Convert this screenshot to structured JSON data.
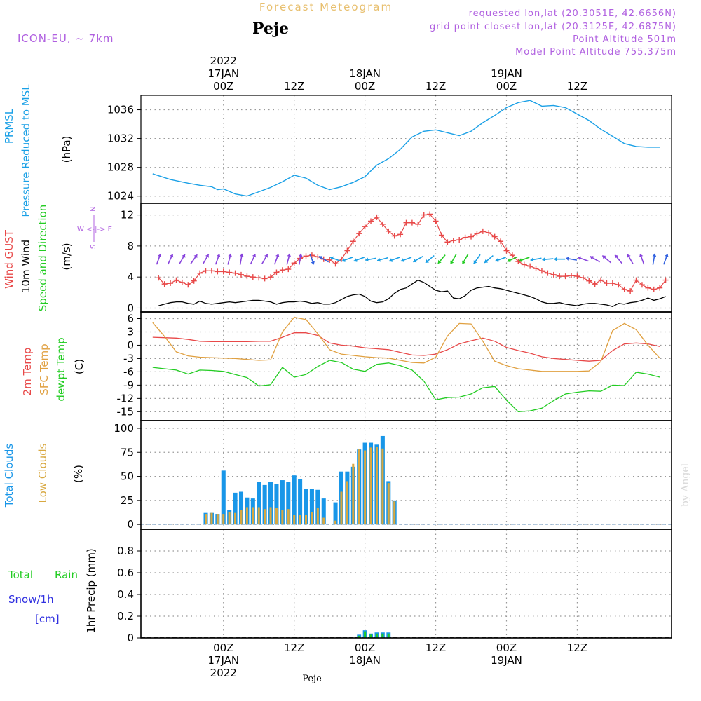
{
  "header": {
    "product": "Forecast Meteogram",
    "location": "Peje",
    "model": "ICON-EU, ~ 7km",
    "requested": "requested lon,lat (20.3051E, 42.6656N)",
    "gridpoint": "grid point closest lon,lat (20.3125E, 42.6875N)",
    "point_alt": "Point Altitude 501m",
    "model_alt": "Model Point Altitude 755.375m",
    "footer_location": "Peje",
    "watermark": "by Angel"
  },
  "colors": {
    "pressure": "#1aa0e6",
    "gust": "#e84848",
    "wind": "#000000",
    "direction": "#22cc22",
    "arrows_purple": "#8844dd",
    "t2m": "#e84848",
    "sfc": "#e0a040",
    "dew": "#22cc22",
    "total_clouds": "#1896e8",
    "low_clouds": "#d8a840",
    "rain": "#22cc22",
    "snow": "#3030e0",
    "header_purple": "#b060e0",
    "header_gold": "#e8c070",
    "grid": "#999999"
  },
  "chart_data": [
    {
      "id": "pressure",
      "type": "line",
      "title": "",
      "ylabels": [
        "PRMSL",
        "Pressure Reduced to MSL"
      ],
      "unit": "(hPa)",
      "ylim": [
        1023,
        1038
      ],
      "yticks": [
        1024,
        1028,
        1032,
        1036
      ],
      "x_hours": [
        -12,
        -9,
        -6,
        -4,
        -2,
        -1,
        0,
        2,
        4,
        6,
        8,
        10,
        12,
        14,
        16,
        18,
        20,
        22,
        24,
        26,
        28,
        30,
        32,
        34,
        36,
        38,
        40,
        42,
        44,
        46,
        48,
        50,
        52,
        54,
        56,
        58,
        60,
        62,
        64,
        66,
        68,
        70,
        72,
        74
      ],
      "series": [
        {
          "values": [
            1027.1,
            1026.3,
            1025.8,
            1025.5,
            1025.3,
            1024.9,
            1025.0,
            1024.3,
            1024.0,
            1024.6,
            1025.2,
            1026.0,
            1026.9,
            1026.5,
            1025.5,
            1024.9,
            1025.3,
            1025.9,
            1026.7,
            1028.3,
            1029.2,
            1030.5,
            1032.2,
            1033.0,
            1033.2,
            1032.8,
            1032.4,
            1033.0,
            1034.2,
            1035.2,
            1036.3,
            1037.0,
            1037.3,
            1036.5,
            1036.6,
            1036.3,
            1035.4,
            1034.5,
            1033.3,
            1032.3,
            1031.3,
            1030.9,
            1030.8,
            1030.8
          ]
        }
      ]
    },
    {
      "id": "wind",
      "type": "line",
      "title": "",
      "ylabels": [
        "Wind GUST",
        "10m Wind",
        "Speed and Direction"
      ],
      "unit": "(m/s)",
      "compass": [
        "N",
        "W <-|-> E",
        "S"
      ],
      "ylim": [
        -0.5,
        13.5
      ],
      "yticks": [
        0,
        4,
        8,
        12
      ],
      "x_hours": [
        -11,
        -10,
        -9,
        -8,
        -7,
        -6,
        -5,
        -4,
        -3,
        -2,
        -1,
        0,
        1,
        2,
        3,
        4,
        5,
        6,
        7,
        8,
        9,
        10,
        11,
        12,
        13,
        14,
        15,
        16,
        17,
        18,
        19,
        20,
        21,
        22,
        23,
        24,
        25,
        26,
        27,
        28,
        29,
        30,
        31,
        32,
        33,
        34,
        35,
        36,
        37,
        38,
        39,
        40,
        41,
        42,
        43,
        44,
        45,
        46,
        47,
        48,
        49,
        50,
        51,
        52,
        53,
        54,
        55,
        56,
        57,
        58,
        59,
        60,
        61,
        62,
        63,
        64,
        65,
        66,
        67,
        68,
        69,
        70,
        71,
        72,
        73,
        74,
        75
      ],
      "series": [
        {
          "name": "Wind GUST",
          "values": [
            3.9,
            3.1,
            3.2,
            3.6,
            3.3,
            3.0,
            3.5,
            4.5,
            4.8,
            4.8,
            4.7,
            4.7,
            4.6,
            4.5,
            4.3,
            4.1,
            4.0,
            3.9,
            3.8,
            4.0,
            4.6,
            4.9,
            5.0,
            5.8,
            6.4,
            6.7,
            6.8,
            6.6,
            6.3,
            6.2,
            5.7,
            6.3,
            7.4,
            8.6,
            9.6,
            10.5,
            11.2,
            11.7,
            10.8,
            9.9,
            9.3,
            9.5,
            11.0,
            11.0,
            10.8,
            12.0,
            12.1,
            11.2,
            9.4,
            8.5,
            8.7,
            8.8,
            9.1,
            9.2,
            9.6,
            9.9,
            9.7,
            9.2,
            8.6,
            7.4,
            6.8,
            6.0,
            5.6,
            5.4,
            5.1,
            4.8,
            4.5,
            4.3,
            4.1,
            4.1,
            4.2,
            4.1,
            3.9,
            3.5,
            3.1,
            3.6,
            3.2,
            3.2,
            3.0,
            2.4,
            2.2,
            3.6,
            3.0,
            2.6,
            2.4,
            2.6,
            3.6
          ]
        },
        {
          "name": "10m Wind",
          "values": [
            0.3,
            0.5,
            0.7,
            0.8,
            0.8,
            0.6,
            0.5,
            0.9,
            0.6,
            0.5,
            0.6,
            0.7,
            0.8,
            0.7,
            0.8,
            0.9,
            1.0,
            1.0,
            0.9,
            0.8,
            0.5,
            0.7,
            0.8,
            0.8,
            0.9,
            0.8,
            0.6,
            0.7,
            0.5,
            0.5,
            0.7,
            1.1,
            1.5,
            1.7,
            1.8,
            1.5,
            0.9,
            0.7,
            0.8,
            1.2,
            1.9,
            2.4,
            2.6,
            3.1,
            3.6,
            3.3,
            2.8,
            2.3,
            2.1,
            2.2,
            1.3,
            1.2,
            1.6,
            2.3,
            2.6,
            2.7,
            2.8,
            2.6,
            2.5,
            2.3,
            2.1,
            1.9,
            1.7,
            1.5,
            1.2,
            0.8,
            0.6,
            0.6,
            0.7,
            0.5,
            0.4,
            0.3,
            0.5,
            0.6,
            0.6,
            0.5,
            0.4,
            0.2,
            0.6,
            0.5,
            0.7,
            0.8,
            1.0,
            1.3,
            1.0,
            1.2,
            1.5
          ]
        }
      ],
      "direction": {
        "arrow_y": 6.3,
        "x_hours": [
          -11,
          -9,
          -7,
          -5,
          -3,
          -1,
          1,
          3,
          5,
          7,
          9,
          11,
          13,
          15,
          17,
          19,
          21,
          23,
          25,
          27,
          29,
          31,
          33,
          35,
          37,
          39,
          41,
          43,
          45,
          47,
          49,
          51,
          53,
          55,
          57,
          59,
          61,
          63,
          65,
          67,
          69,
          71,
          73,
          75
        ],
        "degrees": [
          20,
          25,
          30,
          35,
          30,
          20,
          15,
          10,
          25,
          30,
          20,
          15,
          10,
          160,
          300,
          290,
          250,
          250,
          260,
          255,
          250,
          250,
          240,
          230,
          220,
          210,
          210,
          215,
          230,
          250,
          245,
          250,
          260,
          265,
          270,
          280,
          290,
          300,
          310,
          320,
          330,
          340,
          10,
          20
        ],
        "colors": [
          "#8844dd",
          "#8844dd",
          "#8844dd",
          "#8844dd",
          "#8844dd",
          "#8844dd",
          "#8844dd",
          "#8844dd",
          "#8844dd",
          "#8844dd",
          "#8844dd",
          "#8844dd",
          "#8844dd",
          "#3060e0",
          "#3060e0",
          "#1aa0e6",
          "#1aa0e6",
          "#1aa0e6",
          "#1aa0e6",
          "#1aa0e6",
          "#1aa0e6",
          "#1aa0e6",
          "#1aa0e6",
          "#1aa0e6",
          "#22cc22",
          "#22cc22",
          "#22cc22",
          "#1aa0e6",
          "#1aa0e6",
          "#1aa0e6",
          "#22cc22",
          "#22cc22",
          "#1aa0e6",
          "#1aa0e6",
          "#1aa0e6",
          "#3060e0",
          "#8844dd",
          "#8844dd",
          "#8844dd",
          "#8844dd",
          "#8844dd",
          "#8844dd",
          "#3060e0",
          "#3060e0"
        ]
      }
    },
    {
      "id": "temperature",
      "type": "line",
      "title": "",
      "ylabels": [
        "2m Temp",
        "SFC Temp",
        "dewpt Temp"
      ],
      "unit": "(C)",
      "ylim": [
        -17,
        7.5
      ],
      "yticks": [
        -15,
        -12,
        -9,
        -6,
        -3,
        0,
        3,
        6
      ],
      "x_hours": [
        -12,
        -10,
        -8,
        -6,
        -4,
        -2,
        0,
        2,
        4,
        6,
        8,
        10,
        12,
        14,
        16,
        18,
        20,
        22,
        24,
        26,
        28,
        30,
        32,
        34,
        36,
        38,
        40,
        42,
        44,
        46,
        48,
        50,
        52,
        54,
        56,
        58,
        60,
        62,
        64,
        66,
        68,
        70,
        72,
        74
      ],
      "series": [
        {
          "name": "2m Temp",
          "values": [
            1.8,
            1.7,
            1.6,
            1.3,
            0.9,
            0.8,
            0.8,
            0.8,
            0.8,
            0.9,
            0.9,
            1.8,
            2.8,
            2.8,
            2.2,
            0.5,
            0.0,
            -0.2,
            -0.6,
            -0.8,
            -1.0,
            -1.6,
            -2.2,
            -2.3,
            -2.0,
            -1.0,
            0.3,
            1.0,
            1.6,
            0.9,
            -0.5,
            -1.2,
            -1.8,
            -2.6,
            -3.0,
            -3.2,
            -3.4,
            -3.6,
            -3.4,
            -1.2,
            0.3,
            0.5,
            0.3,
            -0.3
          ]
        },
        {
          "name": "SFC Temp",
          "values": [
            5.1,
            2.0,
            -1.5,
            -2.4,
            -2.7,
            -2.8,
            -2.9,
            -3.0,
            -3.2,
            -3.4,
            -3.3,
            3.0,
            6.3,
            5.8,
            2.6,
            -1.0,
            -2.0,
            -2.3,
            -2.6,
            -2.8,
            -2.9,
            -3.4,
            -3.9,
            -4.0,
            -2.7,
            2.1,
            4.9,
            4.8,
            0.9,
            -3.6,
            -4.6,
            -5.3,
            -5.6,
            -5.9,
            -5.9,
            -5.9,
            -5.9,
            -5.8,
            -3.7,
            3.3,
            4.9,
            3.5,
            0.0,
            -2.9
          ]
        },
        {
          "name": "dewpt Temp",
          "values": [
            -5.0,
            -5.3,
            -5.6,
            -6.5,
            -5.6,
            -5.7,
            -5.9,
            -6.6,
            -7.3,
            -9.2,
            -8.9,
            -5.0,
            -7.2,
            -6.6,
            -4.8,
            -3.4,
            -3.9,
            -5.4,
            -5.9,
            -4.3,
            -4.0,
            -4.6,
            -5.6,
            -8.1,
            -12.3,
            -11.8,
            -11.7,
            -11.0,
            -9.6,
            -9.3,
            -12.4,
            -15.0,
            -14.8,
            -14.2,
            -12.5,
            -11.0,
            -10.6,
            -10.3,
            -10.4,
            -9.0,
            -9.1,
            -6.1,
            -6.5,
            -7.2
          ]
        }
      ]
    },
    {
      "id": "clouds",
      "type": "bar",
      "title": "",
      "ylabels": [
        "Total Clouds",
        "Low Clouds"
      ],
      "unit": "(%)",
      "ylim": [
        -5,
        108
      ],
      "yticks": [
        0,
        25,
        50,
        75,
        100
      ],
      "x_hours": [
        -3,
        -2,
        -1,
        0,
        1,
        2,
        3,
        4,
        5,
        6,
        7,
        8,
        9,
        10,
        11,
        12,
        13,
        14,
        15,
        16,
        17,
        18,
        19,
        20,
        21,
        22,
        23,
        24,
        25,
        26,
        27,
        28,
        29,
        30,
        31
      ],
      "series": [
        {
          "name": "Total Clouds",
          "values": [
            12,
            12,
            11,
            56,
            15,
            33,
            34,
            28,
            27,
            44,
            41,
            44,
            42,
            46,
            44,
            51,
            47,
            37,
            37,
            36,
            27,
            0,
            23,
            55,
            55,
            60,
            78,
            85,
            85,
            83,
            92,
            45,
            25,
            0,
            0
          ]
        },
        {
          "name": "Low Clouds",
          "values": [
            11,
            12,
            11,
            11,
            13,
            12,
            15,
            18,
            18,
            18,
            16,
            18,
            17,
            15,
            16,
            10,
            10,
            10,
            13,
            17,
            7,
            0,
            4,
            34,
            45,
            63,
            78,
            77,
            80,
            81,
            79,
            43,
            24,
            0,
            0
          ]
        }
      ]
    },
    {
      "id": "precip",
      "type": "bar",
      "title": "",
      "ylabels": [
        "1hr Precip (mm)"
      ],
      "left_labels": [
        "Total",
        "Rain",
        "Snow/1h",
        "[cm]"
      ],
      "ylim": [
        0,
        1.0
      ],
      "yticks": [
        0,
        0.2,
        0.4,
        0.6,
        0.8
      ],
      "x_hours": [
        23,
        24,
        25,
        26,
        27,
        28
      ],
      "series": [
        {
          "name": "Total",
          "values": [
            0.03,
            0.07,
            0.04,
            0.05,
            0.05,
            0.05
          ]
        },
        {
          "name": "Rain",
          "values": [
            0.02,
            0.06,
            0.03,
            0.04,
            0.04,
            0.04
          ]
        }
      ]
    }
  ],
  "time_axis": {
    "range_hours": [
      -14,
      76
    ],
    "ticks": [
      {
        "hour": 0,
        "label": "00Z",
        "date": "17JAN",
        "year": "2022"
      },
      {
        "hour": 12,
        "label": "12Z"
      },
      {
        "hour": 24,
        "label": "00Z",
        "date": "18JAN"
      },
      {
        "hour": 36,
        "label": "12Z"
      },
      {
        "hour": 48,
        "label": "00Z",
        "date": "19JAN"
      },
      {
        "hour": 60,
        "label": "12Z"
      }
    ]
  }
}
